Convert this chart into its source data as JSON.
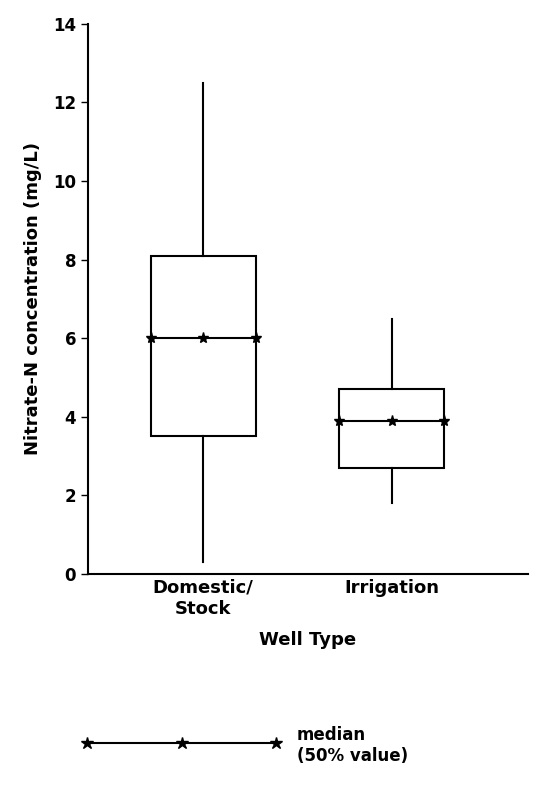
{
  "boxes": [
    {
      "label": "Domestic/\nStock",
      "whisker_low": 0.3,
      "q1": 3.5,
      "median": 6.0,
      "q3": 8.1,
      "whisker_high": 12.5
    },
    {
      "label": "Irrigation",
      "whisker_low": 1.8,
      "q1": 2.7,
      "median": 3.9,
      "q3": 4.7,
      "whisker_high": 6.5
    }
  ],
  "xlabel": "Well Type",
  "ylabel": "Nitrate-N concentration (mg/L)",
  "ylim": [
    0,
    14
  ],
  "yticks": [
    0,
    2,
    4,
    6,
    8,
    10,
    12,
    14
  ],
  "box_width": 0.5,
  "box_color": "#ffffff",
  "box_edge_color": "#000000",
  "whisker_color": "#000000",
  "median_color": "#000000",
  "star_color": "#000000",
  "legend_label": "median\n(50% value)",
  "background_color": "#ffffff",
  "linewidth": 1.5,
  "positions": [
    1.0,
    1.9
  ]
}
